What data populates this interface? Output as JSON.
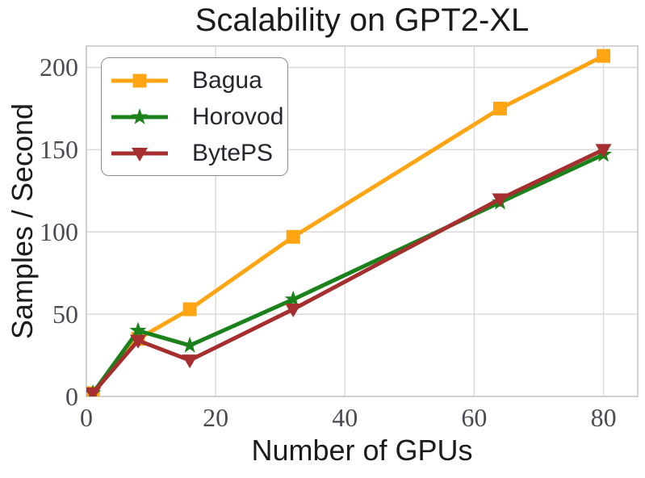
{
  "chart_data": {
    "type": "line",
    "title": "Scalability on GPT2-XL",
    "xlabel": "Number of GPUs",
    "ylabel": "Samples / Second",
    "x": [
      1,
      8,
      16,
      32,
      64,
      80
    ],
    "series": [
      {
        "name": "Bagua",
        "color": "#FFA513",
        "marker": "square",
        "values": [
          2,
          35,
          53,
          97,
          175,
          207
        ]
      },
      {
        "name": "Horovod",
        "color": "#1B811B",
        "marker": "star",
        "values": [
          2,
          40,
          31,
          59,
          118,
          147
        ]
      },
      {
        "name": "BytePS",
        "color": "#A52F2F",
        "marker": "triangle-down",
        "values": [
          2,
          34,
          22,
          53,
          120,
          150
        ]
      }
    ],
    "xticks": [
      0,
      20,
      40,
      60,
      80
    ],
    "yticks": [
      0,
      50,
      100,
      150,
      200
    ],
    "xlim": [
      0,
      85.3
    ],
    "ylim": [
      0,
      213
    ],
    "grid": true,
    "legend_position": "upper-left",
    "grid_color": "#D9D9D9",
    "spine_color": "#C9C9C9",
    "tick_color": "#4A4B52",
    "text_color": "#1B1B1B"
  }
}
